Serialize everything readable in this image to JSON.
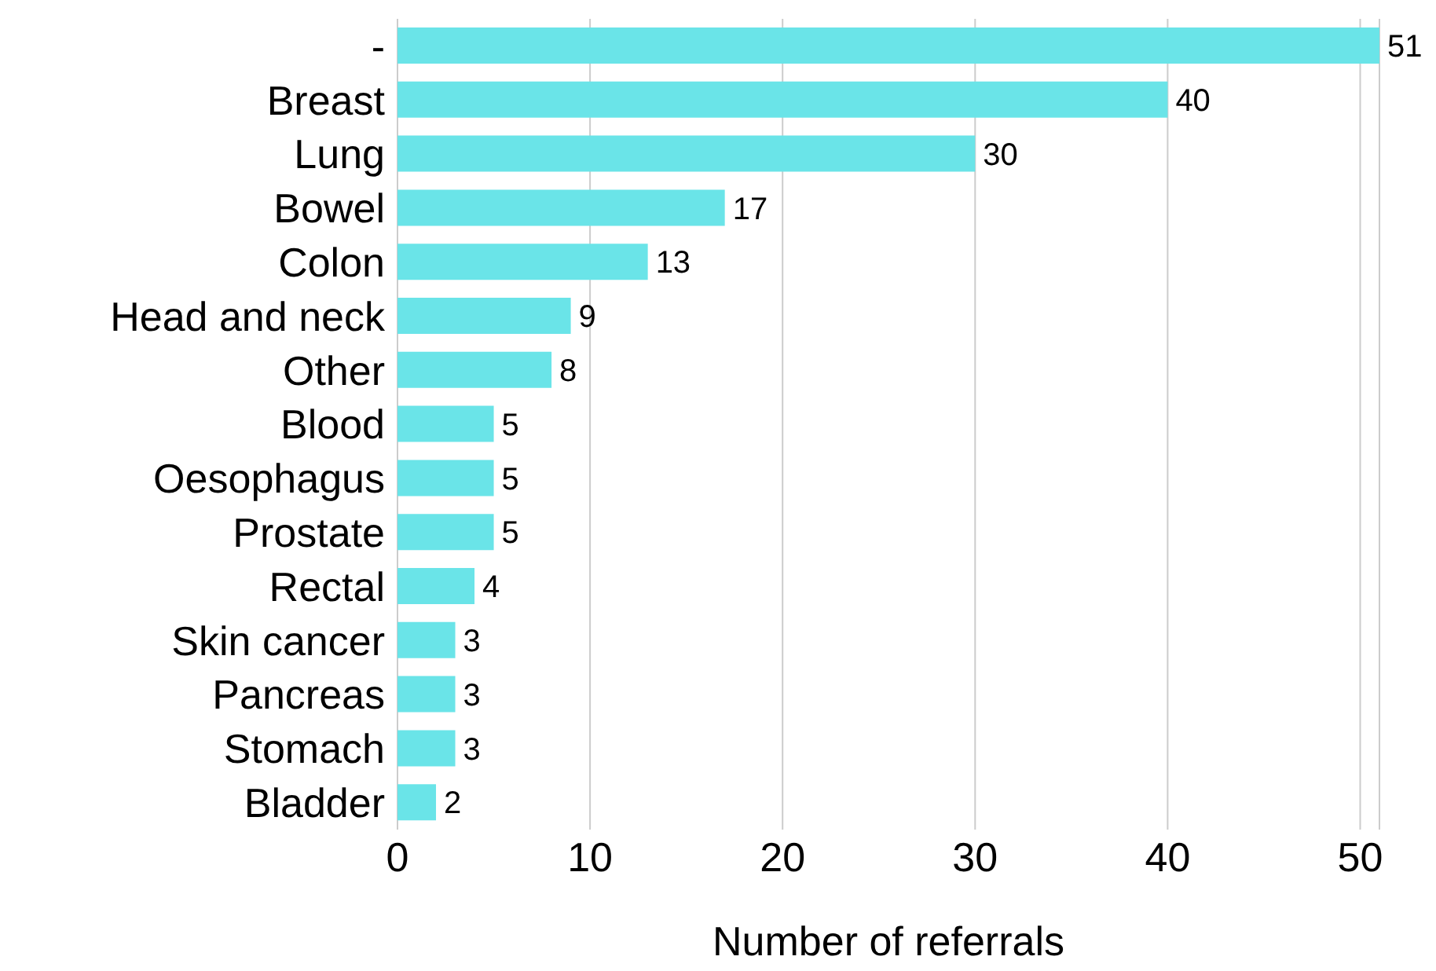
{
  "chart_data": {
    "type": "bar",
    "orientation": "horizontal",
    "xlabel": "Number of referrals",
    "categories": [
      "-",
      "Breast",
      "Lung",
      "Bowel",
      "Colon",
      "Head and neck",
      "Other",
      "Blood",
      "Oesophagus",
      "Prostate",
      "Rectal",
      "Skin cancer",
      "Pancreas",
      "Stomach",
      "Bladder"
    ],
    "values": [
      51,
      40,
      30,
      17,
      13,
      9,
      8,
      5,
      5,
      5,
      4,
      3,
      3,
      3,
      2
    ],
    "color": "#6ae4e8",
    "xlim": [
      0,
      51
    ],
    "xticks": [
      0,
      10,
      20,
      30,
      40,
      50
    ],
    "grid": "x",
    "data_labels": true,
    "legend": false
  }
}
